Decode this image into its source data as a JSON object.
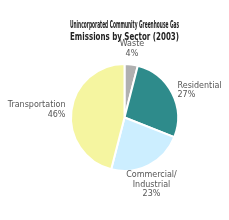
{
  "chart_data": {
    "type": "pie",
    "title": "Unincorporated Community Greenhouse Gas\nEmissions by Sector (2003)",
    "categories": [
      "Waste",
      "Residential",
      "Commercial/\nIndustrial",
      "Transportation"
    ],
    "values": [
      4,
      27,
      23,
      46
    ],
    "value_labels": [
      "4%",
      "27%",
      "23%",
      "46%"
    ],
    "colors": [
      "#b0b0b0",
      "#2e8b8b",
      "#cceeff",
      "#f5f5a0"
    ],
    "data_labels": true
  }
}
